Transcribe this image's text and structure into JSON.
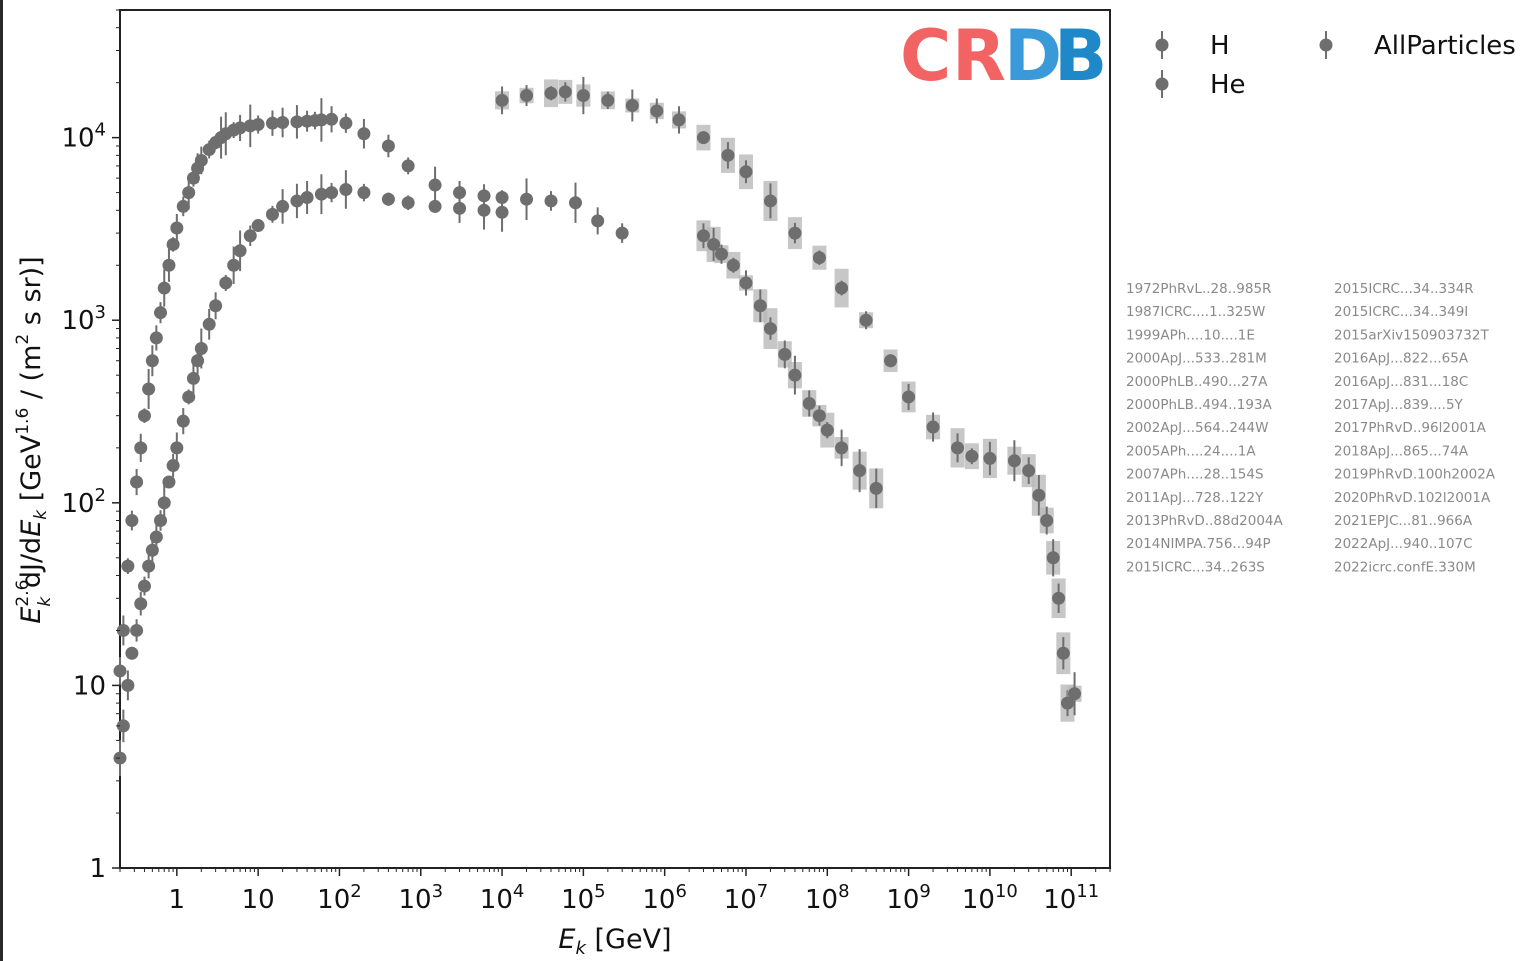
{
  "chart_data": {
    "type": "scatter",
    "xlabel": "E_k [GeV]",
    "ylabel": "E_k^{2.6} dJ/dE_k [GeV^{1.6} / (m^2 s sr)]",
    "x_scale": "log",
    "y_scale": "log",
    "xlim": [
      0.2,
      300000000000
    ],
    "ylim": [
      1,
      50000
    ],
    "x_ticks": [
      {
        "value": 1,
        "label": "1"
      },
      {
        "value": 10,
        "label": "10"
      },
      {
        "value": 100,
        "base": "10",
        "exp": "2"
      },
      {
        "value": 1000,
        "base": "10",
        "exp": "3"
      },
      {
        "value": 10000,
        "base": "10",
        "exp": "4"
      },
      {
        "value": 100000,
        "base": "10",
        "exp": "5"
      },
      {
        "value": 1000000,
        "base": "10",
        "exp": "6"
      },
      {
        "value": 10000000,
        "base": "10",
        "exp": "7"
      },
      {
        "value": 100000000,
        "base": "10",
        "exp": "8"
      },
      {
        "value": 1000000000,
        "base": "10",
        "exp": "9"
      },
      {
        "value": 10000000000,
        "base": "10",
        "exp": "10"
      },
      {
        "value": 100000000000,
        "base": "10",
        "exp": "11"
      }
    ],
    "y_ticks": [
      {
        "value": 1,
        "label": "1"
      },
      {
        "value": 10,
        "label": "10"
      },
      {
        "value": 100,
        "base": "10",
        "exp": "2"
      },
      {
        "value": 1000,
        "base": "10",
        "exp": "3"
      },
      {
        "value": 10000,
        "base": "10",
        "exp": "4"
      }
    ],
    "legend": [
      "H",
      "He",
      "AllParticles"
    ],
    "legend_position": "outside-right-top",
    "grid": false,
    "marker_color": "#6e6e6e",
    "series": [
      {
        "name": "H",
        "points": [
          [
            0.2,
            12
          ],
          [
            0.22,
            20
          ],
          [
            0.25,
            45
          ],
          [
            0.28,
            80
          ],
          [
            0.32,
            130
          ],
          [
            0.36,
            200
          ],
          [
            0.4,
            300
          ],
          [
            0.45,
            420
          ],
          [
            0.5,
            600
          ],
          [
            0.56,
            800
          ],
          [
            0.63,
            1100
          ],
          [
            0.7,
            1500
          ],
          [
            0.8,
            2000
          ],
          [
            0.9,
            2600
          ],
          [
            1.0,
            3200
          ],
          [
            1.2,
            4200
          ],
          [
            1.4,
            5000
          ],
          [
            1.6,
            6000
          ],
          [
            1.8,
            6800
          ],
          [
            2.0,
            7500
          ],
          [
            2.5,
            8600
          ],
          [
            3.0,
            9400
          ],
          [
            3.5,
            10000
          ],
          [
            4,
            10500
          ],
          [
            5,
            11000
          ],
          [
            6,
            11300
          ],
          [
            8,
            11600
          ],
          [
            10,
            11800
          ],
          [
            15,
            12000
          ],
          [
            20,
            12100
          ],
          [
            30,
            12200
          ],
          [
            40,
            12300
          ],
          [
            50,
            12400
          ],
          [
            60,
            12500
          ],
          [
            80,
            12600
          ],
          [
            120,
            12000
          ],
          [
            200,
            10500
          ],
          [
            400,
            9000
          ],
          [
            700,
            7000
          ],
          [
            1500,
            5500
          ],
          [
            3000,
            5000
          ],
          [
            6000,
            4800
          ],
          [
            10000,
            4700
          ],
          [
            20000,
            4600
          ],
          [
            40000,
            4500
          ],
          [
            80000,
            4400
          ],
          [
            150000,
            3500
          ],
          [
            300000,
            3000
          ]
        ],
        "knee_branch": [
          [
            3000000,
            2900
          ],
          [
            4000000,
            2600
          ],
          [
            5000000,
            2300
          ],
          [
            7000000,
            2000
          ],
          [
            10000000,
            1600
          ],
          [
            15000000,
            1200
          ],
          [
            20000000,
            900
          ],
          [
            30000000,
            650
          ],
          [
            40000000,
            500
          ],
          [
            60000000,
            350
          ],
          [
            80000000,
            300
          ],
          [
            100000000,
            250
          ],
          [
            150000000,
            200
          ],
          [
            250000000,
            150
          ],
          [
            400000000,
            120
          ]
        ]
      },
      {
        "name": "He",
        "points": [
          [
            0.2,
            4
          ],
          [
            0.22,
            6
          ],
          [
            0.25,
            10
          ],
          [
            0.28,
            15
          ],
          [
            0.32,
            20
          ],
          [
            0.36,
            28
          ],
          [
            0.4,
            35
          ],
          [
            0.45,
            45
          ],
          [
            0.5,
            55
          ],
          [
            0.56,
            65
          ],
          [
            0.63,
            80
          ],
          [
            0.7,
            100
          ],
          [
            0.8,
            130
          ],
          [
            0.9,
            160
          ],
          [
            1.0,
            200
          ],
          [
            1.2,
            280
          ],
          [
            1.4,
            380
          ],
          [
            1.6,
            480
          ],
          [
            1.8,
            600
          ],
          [
            2.0,
            700
          ],
          [
            2.5,
            950
          ],
          [
            3.0,
            1200
          ],
          [
            4,
            1600
          ],
          [
            5,
            2000
          ],
          [
            6,
            2400
          ],
          [
            8,
            2900
          ],
          [
            10,
            3300
          ],
          [
            15,
            3800
          ],
          [
            20,
            4200
          ],
          [
            30,
            4500
          ],
          [
            40,
            4700
          ],
          [
            60,
            4900
          ],
          [
            80,
            5000
          ],
          [
            120,
            5200
          ],
          [
            200,
            5000
          ],
          [
            400,
            4600
          ],
          [
            700,
            4400
          ],
          [
            1500,
            4200
          ],
          [
            3000,
            4100
          ],
          [
            6000,
            4000
          ],
          [
            10000,
            3900
          ]
        ]
      },
      {
        "name": "AllParticles",
        "points": [
          [
            10000,
            16000
          ],
          [
            20000,
            17000
          ],
          [
            40000,
            17500
          ],
          [
            60000,
            17800
          ],
          [
            100000,
            17000
          ],
          [
            200000,
            16000
          ],
          [
            400000,
            15000
          ],
          [
            800000,
            14000
          ],
          [
            1500000,
            12500
          ],
          [
            3000000,
            10000
          ],
          [
            6000000,
            8000
          ],
          [
            10000000,
            6500
          ],
          [
            20000000,
            4500
          ],
          [
            40000000,
            3000
          ],
          [
            80000000,
            2200
          ],
          [
            150000000,
            1500
          ],
          [
            300000000,
            1000
          ],
          [
            600000000,
            600
          ],
          [
            1000000000,
            380
          ],
          [
            2000000000,
            260
          ],
          [
            4000000000,
            200
          ],
          [
            6000000000,
            180
          ],
          [
            10000000000,
            175
          ],
          [
            20000000000,
            170
          ],
          [
            30000000000,
            150
          ],
          [
            40000000000,
            110
          ],
          [
            50000000000,
            80
          ],
          [
            60000000000,
            50
          ],
          [
            70000000000,
            30
          ],
          [
            80000000000,
            15
          ],
          [
            90000000000,
            8
          ],
          [
            110000000000,
            9
          ]
        ]
      }
    ],
    "references_col1": [
      "1972PhRvL..28..985R",
      "1987ICRC....1..325W",
      "1999APh....10....1E",
      "2000ApJ...533..281M",
      "2000PhLB..490...27A",
      "2000PhLB..494..193A",
      "2002ApJ...564..244W",
      "2005APh....24....1A",
      "2007APh....28..154S",
      "2011ApJ...728..122Y",
      "2013PhRvD..88d2004A",
      "2014NIMPA.756...94P",
      "2015ICRC...34..263S"
    ],
    "references_col2": [
      "2015ICRC...34..334R",
      "2015ICRC...34..349I",
      "2015arXiv150903732T",
      "2016ApJ...822...65A",
      "2016ApJ...831...18C",
      "2017ApJ...839....5Y",
      "2017PhRvD..96l2001A",
      "2018ApJ...865...74A",
      "2019PhRvD.100h2002A",
      "2020PhRvD.102l2001A",
      "2021EPJC...81..966A",
      "2022ApJ...940..107C",
      "2022icrc.confE.330M"
    ],
    "logo": {
      "text": "CRDB",
      "colors": [
        "#f26464",
        "#f26464",
        "#3a9ad9",
        "#1e88c8"
      ]
    }
  }
}
